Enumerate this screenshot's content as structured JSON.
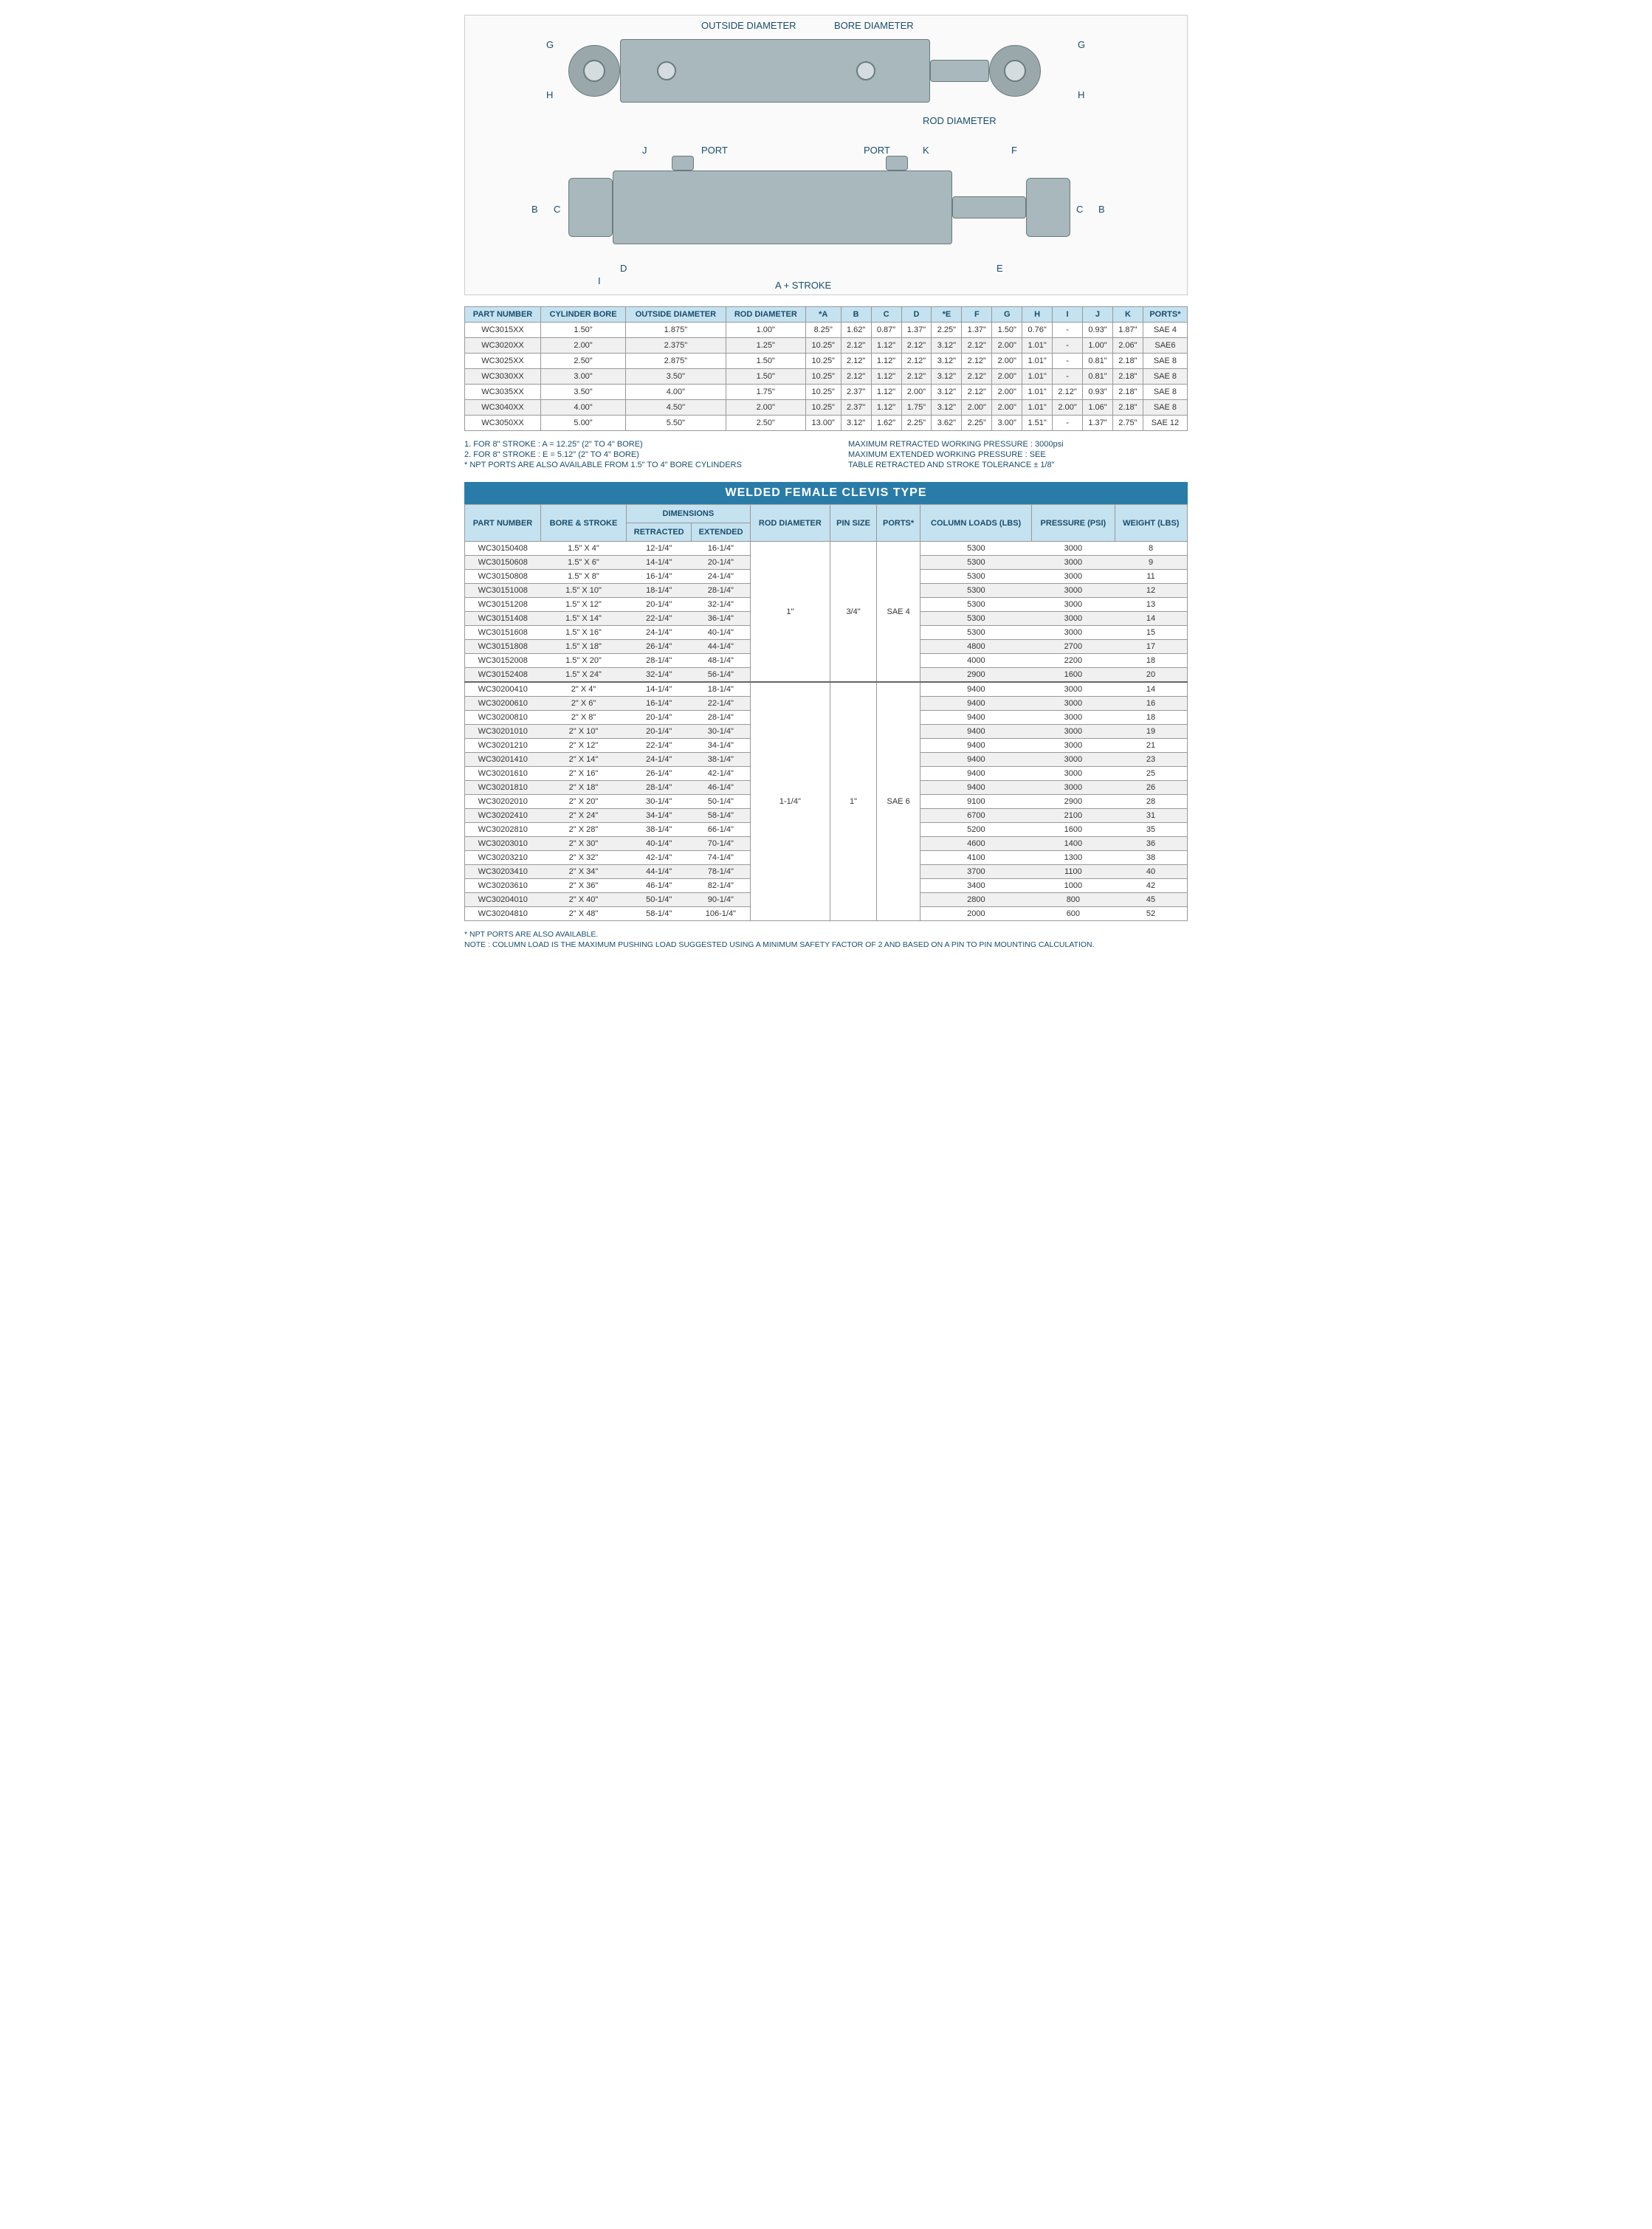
{
  "diagram": {
    "labels": {
      "outside_diameter": "OUTSIDE DIAMETER",
      "bore_diameter": "BORE DIAMETER",
      "rod_diameter": "ROD DIAMETER",
      "port": "PORT",
      "a_stroke": "A + STROKE",
      "G": "G",
      "H": "H",
      "J": "J",
      "K": "K",
      "F": "F",
      "B": "B",
      "C": "C",
      "D": "D",
      "I": "I",
      "E": "E"
    }
  },
  "table1": {
    "headers": [
      "PART NUMBER",
      "CYLINDER BORE",
      "OUTSIDE DIAMETER",
      "ROD DIAMETER",
      "*A",
      "B",
      "C",
      "D",
      "*E",
      "F",
      "G",
      "H",
      "I",
      "J",
      "K",
      "PORTS*"
    ],
    "rows": [
      [
        "WC3015XX",
        "1.50\"",
        "1.875\"",
        "1.00\"",
        "8.25\"",
        "1.62\"",
        "0.87\"",
        "1.37\"",
        "2.25\"",
        "1.37\"",
        "1.50\"",
        "0.76\"",
        "-",
        "0.93\"",
        "1.87\"",
        "SAE 4"
      ],
      [
        "WC3020XX",
        "2.00\"",
        "2.375\"",
        "1.25\"",
        "10.25\"",
        "2.12\"",
        "1.12\"",
        "2.12\"",
        "3.12\"",
        "2.12\"",
        "2.00\"",
        "1.01\"",
        "-",
        "1.00\"",
        "2.06\"",
        "SAE6"
      ],
      [
        "WC3025XX",
        "2.50\"",
        "2.875\"",
        "1.50\"",
        "10.25\"",
        "2.12\"",
        "1.12\"",
        "2.12\"",
        "3.12\"",
        "2.12\"",
        "2.00\"",
        "1.01\"",
        "-",
        "0.81\"",
        "2.18\"",
        "SAE 8"
      ],
      [
        "WC3030XX",
        "3.00\"",
        "3.50\"",
        "1.50\"",
        "10.25\"",
        "2.12\"",
        "1.12\"",
        "2.12\"",
        "3.12\"",
        "2.12\"",
        "2.00\"",
        "1.01\"",
        "-",
        "0.81\"",
        "2.18\"",
        "SAE 8"
      ],
      [
        "WC3035XX",
        "3.50\"",
        "4.00\"",
        "1.75\"",
        "10.25\"",
        "2.37\"",
        "1.12\"",
        "2.00\"",
        "3.12\"",
        "2.12\"",
        "2.00\"",
        "1.01\"",
        "2.12\"",
        "0.93\"",
        "2.18\"",
        "SAE 8"
      ],
      [
        "WC3040XX",
        "4.00\"",
        "4.50\"",
        "2.00\"",
        "10.25\"",
        "2.37\"",
        "1.12\"",
        "1.75\"",
        "3.12\"",
        "2.00\"",
        "2.00\"",
        "1.01\"",
        "2.00\"",
        "1.06\"",
        "2.18\"",
        "SAE 8"
      ],
      [
        "WC3050XX",
        "5.00\"",
        "5.50\"",
        "2.50\"",
        "13.00\"",
        "3.12\"",
        "1.62\"",
        "2.25\"",
        "3.62\"",
        "2.25\"",
        "3.00\"",
        "1.51\"",
        "-",
        "1.37\"",
        "2.75\"",
        "SAE 12"
      ]
    ]
  },
  "mid_notes": {
    "left": [
      "1.  FOR 8\" STROKE : A = 12.25\" (2\" TO 4\" BORE)",
      "2.  FOR 8\" STROKE : E = 5.12\" (2\" TO 4\" BORE)",
      "* NPT PORTS ARE ALSO AVAILABLE FROM 1.5\" TO 4\" BORE CYLINDERS"
    ],
    "right": [
      "MAXIMUM RETRACTED WORKING PRESSURE : 3000psi",
      "MAXIMUM EXTENDED WORKING PRESSURE : SEE",
      "TABLE RETRACTED AND STROKE TOLERANCE ± 1/8\""
    ]
  },
  "section_title": "WELDED FEMALE CLEVIS TYPE",
  "table2": {
    "headers": {
      "part": "PART NUMBER",
      "bore": "BORE & STROKE",
      "dims": "DIMENSIONS",
      "retracted": "RETRACTED",
      "extended": "EXTENDED",
      "rod": "ROD DIAMETER",
      "pin": "PIN SIZE",
      "ports": "PORTS*",
      "column": "COLUMN LOADS (LBS)",
      "pressure": "PRESSURE (PSI)",
      "weight": "WEIGHT (LBS)"
    },
    "groups": [
      {
        "rod": "1\"",
        "pin": "3/4\"",
        "ports": "SAE 4",
        "rows": [
          [
            "WC30150408",
            "1.5\" X 4\"",
            "12-1/4\"",
            "16-1/4\"",
            "5300",
            "3000",
            "8"
          ],
          [
            "WC30150608",
            "1.5\" X 6\"",
            "14-1/4\"",
            "20-1/4\"",
            "5300",
            "3000",
            "9"
          ],
          [
            "WC30150808",
            "1.5\" X 8\"",
            "16-1/4\"",
            "24-1/4\"",
            "5300",
            "3000",
            "11"
          ],
          [
            "WC30151008",
            "1.5\" X 10\"",
            "18-1/4\"",
            "28-1/4\"",
            "5300",
            "3000",
            "12"
          ],
          [
            "WC30151208",
            "1.5\" X 12\"",
            "20-1/4\"",
            "32-1/4\"",
            "5300",
            "3000",
            "13"
          ],
          [
            "WC30151408",
            "1.5\" X 14\"",
            "22-1/4\"",
            "36-1/4\"",
            "5300",
            "3000",
            "14"
          ],
          [
            "WC30151608",
            "1.5\" X 16\"",
            "24-1/4\"",
            "40-1/4\"",
            "5300",
            "3000",
            "15"
          ],
          [
            "WC30151808",
            "1.5\" X 18\"",
            "26-1/4\"",
            "44-1/4\"",
            "4800",
            "2700",
            "17"
          ],
          [
            "WC30152008",
            "1.5\" X 20\"",
            "28-1/4\"",
            "48-1/4\"",
            "4000",
            "2200",
            "18"
          ],
          [
            "WC30152408",
            "1.5\" X 24\"",
            "32-1/4\"",
            "56-1/4\"",
            "2900",
            "1600",
            "20"
          ]
        ]
      },
      {
        "rod": "1-1/4\"",
        "pin": "1\"",
        "ports": "SAE 6",
        "rows": [
          [
            "WC30200410",
            "2\" X 4\"",
            "14-1/4\"",
            "18-1/4\"",
            "9400",
            "3000",
            "14"
          ],
          [
            "WC30200610",
            "2\" X 6\"",
            "16-1/4\"",
            "22-1/4\"",
            "9400",
            "3000",
            "16"
          ],
          [
            "WC30200810",
            "2\" X 8\"",
            "20-1/4\"",
            "28-1/4\"",
            "9400",
            "3000",
            "18"
          ],
          [
            "WC30201010",
            "2\" X 10\"",
            "20-1/4\"",
            "30-1/4\"",
            "9400",
            "3000",
            "19"
          ],
          [
            "WC30201210",
            "2\" X 12\"",
            "22-1/4\"",
            "34-1/4\"",
            "9400",
            "3000",
            "21"
          ],
          [
            "WC30201410",
            "2\" X 14\"",
            "24-1/4\"",
            "38-1/4\"",
            "9400",
            "3000",
            "23"
          ],
          [
            "WC30201610",
            "2\" X 16\"",
            "26-1/4\"",
            "42-1/4\"",
            "9400",
            "3000",
            "25"
          ],
          [
            "WC30201810",
            "2\" X 18\"",
            "28-1/4\"",
            "46-1/4\"",
            "9400",
            "3000",
            "26"
          ],
          [
            "WC30202010",
            "2\" X 20\"",
            "30-1/4\"",
            "50-1/4\"",
            "9100",
            "2900",
            "28"
          ],
          [
            "WC30202410",
            "2\" X 24\"",
            "34-1/4\"",
            "58-1/4\"",
            "6700",
            "2100",
            "31"
          ],
          [
            "WC30202810",
            "2\" X 28\"",
            "38-1/4\"",
            "66-1/4\"",
            "5200",
            "1600",
            "35"
          ],
          [
            "WC30203010",
            "2\" X 30\"",
            "40-1/4\"",
            "70-1/4\"",
            "4600",
            "1400",
            "36"
          ],
          [
            "WC30203210",
            "2\" X 32\"",
            "42-1/4\"",
            "74-1/4\"",
            "4100",
            "1300",
            "38"
          ],
          [
            "WC30203410",
            "2\" X 34\"",
            "44-1/4\"",
            "78-1/4\"",
            "3700",
            "1100",
            "40"
          ],
          [
            "WC30203610",
            "2\" X 36\"",
            "46-1/4\"",
            "82-1/4\"",
            "3400",
            "1000",
            "42"
          ],
          [
            "WC30204010",
            "2\" X 40\"",
            "50-1/4\"",
            "90-1/4\"",
            "2800",
            "800",
            "45"
          ],
          [
            "WC30204810",
            "2\" X 48\"",
            "58-1/4\"",
            "106-1/4\"",
            "2000",
            "600",
            "52"
          ]
        ]
      }
    ]
  },
  "footnotes": [
    "* NPT PORTS ARE ALSO AVAILABLE.",
    "NOTE : COLUMN LOAD IS THE MAXIMUM PUSHING LOAD SUGGESTED USING A MINIMUM SAFETY FACTOR OF 2 AND BASED ON A PIN TO PIN MOUNTING CALCULATION."
  ],
  "colors": {
    "header_bg": "#c5e2f0",
    "header_text": "#1a4d6b",
    "section_bg": "#2a7ca8",
    "cyl_body": "#a8b8bc",
    "border": "#999999"
  }
}
